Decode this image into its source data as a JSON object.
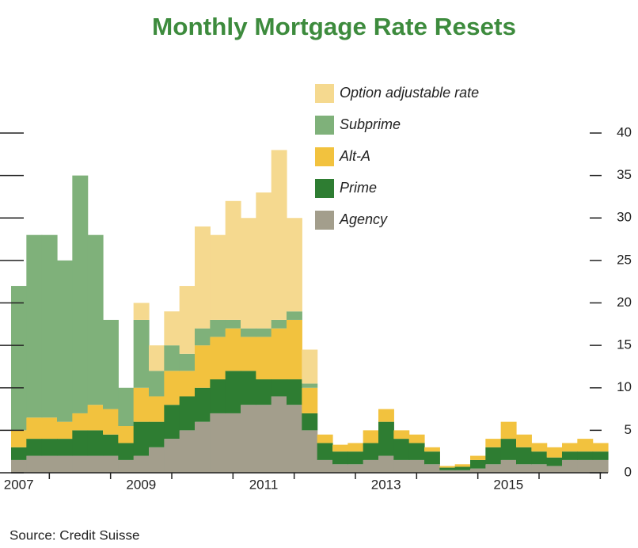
{
  "chart_data": {
    "type": "stacked-bar",
    "title": "Monthly Mortgage Rate Resets",
    "source": "Source: Credit Suisse",
    "x": [
      2007.5,
      2007.75,
      2008.0,
      2008.25,
      2008.5,
      2008.75,
      2009.0,
      2009.25,
      2009.5,
      2009.75,
      2010.0,
      2010.25,
      2010.5,
      2010.75,
      2011.0,
      2011.25,
      2011.5,
      2011.75,
      2012.0,
      2012.25,
      2012.5,
      2012.75,
      2013.0,
      2013.25,
      2013.5,
      2013.75,
      2014.0,
      2014.25,
      2014.5,
      2014.75,
      2015.0,
      2015.25,
      2015.5,
      2015.75,
      2016.0,
      2016.25,
      2016.5,
      2016.75,
      2017.0
    ],
    "series": [
      {
        "name": "Agency",
        "color": "#a39e8c",
        "values": [
          1.5,
          2,
          2,
          2,
          2,
          2,
          2,
          1.5,
          2,
          3,
          4,
          5,
          6,
          7,
          7,
          8,
          8,
          9,
          8,
          5,
          1.5,
          1,
          1,
          1.5,
          2,
          1.5,
          1.5,
          1,
          0.3,
          0.3,
          0.5,
          1,
          1.5,
          1,
          1,
          0.8,
          1.5,
          1.5,
          1.5
        ]
      },
      {
        "name": "Prime",
        "color": "#2e7d32",
        "values": [
          1.5,
          2,
          2,
          2,
          3,
          3,
          2.5,
          2,
          4,
          3,
          4,
          4,
          4,
          4,
          5,
          4,
          3,
          2,
          3,
          2,
          2,
          1.5,
          1.5,
          2,
          4,
          2.5,
          2,
          1.5,
          0.3,
          0.4,
          1,
          2,
          2.5,
          2,
          1.5,
          1,
          1,
          1,
          1
        ]
      },
      {
        "name": "Alt-A",
        "color": "#f2c23e",
        "values": [
          2,
          2.5,
          2.5,
          2,
          2,
          3,
          3,
          2,
          4,
          3,
          4,
          3,
          5,
          5,
          5,
          4,
          5,
          6,
          7,
          3,
          1,
          0.8,
          1,
          1.5,
          1.5,
          1,
          1,
          0.5,
          0.2,
          0.3,
          0.5,
          1,
          2,
          1.5,
          1,
          1.2,
          1,
          1.5,
          1
        ]
      },
      {
        "name": "Subprime",
        "color": "#7fb17a",
        "values": [
          17,
          21.5,
          21.5,
          19,
          28,
          20,
          10.5,
          4.5,
          8,
          3,
          3,
          2,
          2,
          2,
          1,
          1,
          1,
          1,
          1,
          0.5,
          0,
          0,
          0,
          0,
          0,
          0,
          0,
          0,
          0,
          0,
          0,
          0,
          0,
          0,
          0,
          0,
          0,
          0,
          0
        ]
      },
      {
        "name": "Option adjustable rate",
        "color": "#f5d98f",
        "values": [
          0,
          0,
          0,
          0,
          0,
          0,
          0,
          0,
          2,
          3,
          4,
          8,
          12,
          10,
          14,
          13,
          16,
          20,
          11,
          4,
          0,
          0,
          0,
          0,
          0,
          0,
          0,
          0,
          0,
          0,
          0,
          0,
          0,
          0,
          0,
          0,
          0,
          0,
          0
        ]
      }
    ],
    "xlim": [
      2007.375,
      2017.125
    ],
    "xticks": [
      {
        "value": 2007.5,
        "label": "2007"
      },
      {
        "value": 2009.5,
        "label": "2009"
      },
      {
        "value": 2011.5,
        "label": "2011"
      },
      {
        "value": 2013.5,
        "label": "2013"
      },
      {
        "value": 2015.5,
        "label": "2015"
      }
    ],
    "xtick_marks": [
      2008,
      2009,
      2010,
      2011,
      2012,
      2013,
      2014,
      2015,
      2016,
      2017
    ],
    "ylim": [
      0,
      40
    ],
    "yticks": [
      0,
      5,
      10,
      15,
      20,
      25,
      30,
      35,
      40
    ],
    "y_axis_side": "right"
  }
}
